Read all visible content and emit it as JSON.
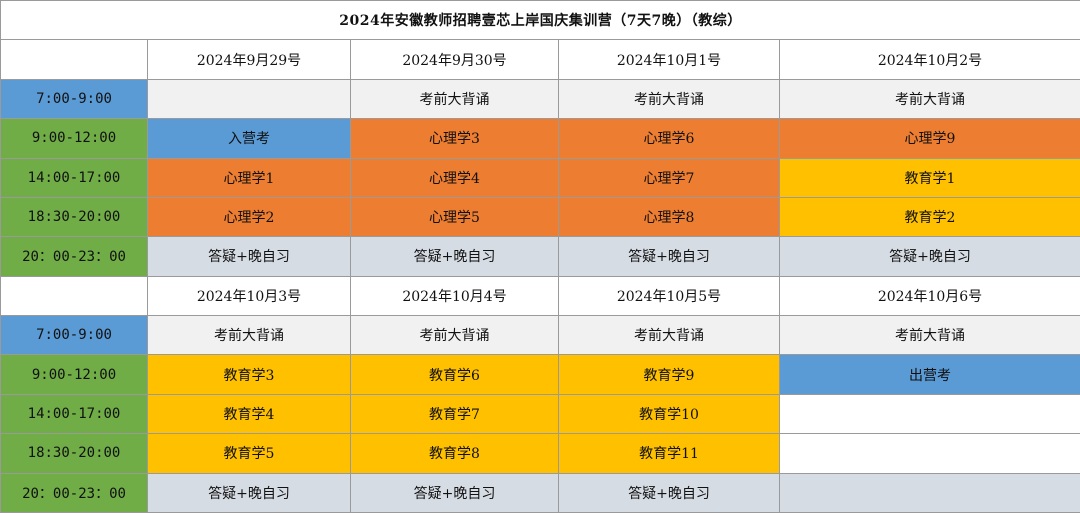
{
  "title": "2024年安徽教师招聘壹芯上岸国庆集训营（7天7晚）（教综）",
  "blocks": [
    {
      "dates": [
        "2024年9月29号",
        "2024年9月30号",
        "2024年10月1号",
        "2024年10月2号"
      ],
      "rows": [
        {
          "time": "7:00-9:00",
          "time_color": "blue",
          "cells": [
            {
              "text": "",
              "color": "gray"
            },
            {
              "text": "考前大背诵",
              "color": "gray"
            },
            {
              "text": "考前大背诵",
              "color": "gray"
            },
            {
              "text": "考前大背诵",
              "color": "gray"
            }
          ]
        },
        {
          "time": "9:00-12:00",
          "time_color": "green",
          "cells": [
            {
              "text": "入营考",
              "color": "blue"
            },
            {
              "text": "心理学3",
              "color": "orange"
            },
            {
              "text": "心理学6",
              "color": "orange"
            },
            {
              "text": "心理学9",
              "color": "orange"
            }
          ]
        },
        {
          "time": "14:00-17:00",
          "time_color": "green",
          "cells": [
            {
              "text": "心理学1",
              "color": "orange"
            },
            {
              "text": "心理学4",
              "color": "orange"
            },
            {
              "text": "心理学7",
              "color": "orange"
            },
            {
              "text": "教育学1",
              "color": "yellow"
            }
          ]
        },
        {
          "time": "18:30-20:00",
          "time_color": "green",
          "cells": [
            {
              "text": "心理学2",
              "color": "orange"
            },
            {
              "text": "心理学5",
              "color": "orange"
            },
            {
              "text": "心理学8",
              "color": "orange"
            },
            {
              "text": "教育学2",
              "color": "yellow"
            }
          ]
        },
        {
          "time": "20：00-23：00",
          "time_color": "green",
          "cells": [
            {
              "text": "答疑+晚自习",
              "color": "slate"
            },
            {
              "text": "答疑+晚自习",
              "color": "slate"
            },
            {
              "text": "答疑+晚自习",
              "color": "slate"
            },
            {
              "text": "答疑+晚自习",
              "color": "slate"
            }
          ]
        }
      ]
    },
    {
      "dates": [
        "2024年10月3号",
        "2024年10月4号",
        "2024年10月5号",
        "2024年10月6号"
      ],
      "rows": [
        {
          "time": "7:00-9:00",
          "time_color": "blue",
          "cells": [
            {
              "text": "考前大背诵",
              "color": "gray"
            },
            {
              "text": "考前大背诵",
              "color": "gray"
            },
            {
              "text": "考前大背诵",
              "color": "gray"
            },
            {
              "text": "考前大背诵",
              "color": "gray"
            }
          ]
        },
        {
          "time": "9:00-12:00",
          "time_color": "green",
          "cells": [
            {
              "text": "教育学3",
              "color": "yellow"
            },
            {
              "text": "教育学6",
              "color": "yellow"
            },
            {
              "text": "教育学9",
              "color": "yellow"
            },
            {
              "text": "出营考",
              "color": "blue"
            }
          ]
        },
        {
          "time": "14:00-17:00",
          "time_color": "green",
          "cells": [
            {
              "text": "教育学4",
              "color": "yellow"
            },
            {
              "text": "教育学7",
              "color": "yellow"
            },
            {
              "text": "教育学10",
              "color": "yellow"
            },
            {
              "text": "",
              "color": "white"
            }
          ]
        },
        {
          "time": "18:30-20:00",
          "time_color": "green",
          "cells": [
            {
              "text": "教育学5",
              "color": "yellow"
            },
            {
              "text": "教育学8",
              "color": "yellow"
            },
            {
              "text": "教育学11",
              "color": "yellow"
            },
            {
              "text": "",
              "color": "white"
            }
          ]
        },
        {
          "time": "20：00-23：00",
          "time_color": "green",
          "cells": [
            {
              "text": "答疑+晚自习",
              "color": "slate"
            },
            {
              "text": "答疑+晚自习",
              "color": "slate"
            },
            {
              "text": "答疑+晚自习",
              "color": "slate"
            },
            {
              "text": "",
              "color": "slate"
            }
          ]
        }
      ]
    }
  ]
}
